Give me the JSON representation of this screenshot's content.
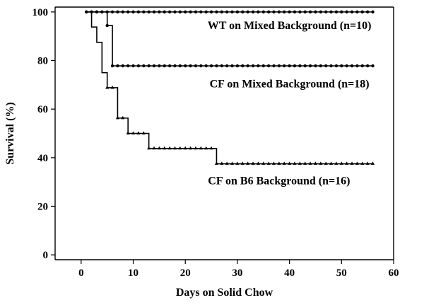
{
  "chart_data": {
    "type": "line",
    "xlabel": "Days on Solid Chow",
    "ylabel": "Survival (%)",
    "xlim": [
      -5,
      60
    ],
    "ylim": [
      -2,
      102
    ],
    "xticks": [
      0,
      10,
      20,
      30,
      40,
      50,
      60
    ],
    "yticks": [
      0,
      20,
      40,
      60,
      80,
      100
    ],
    "grid": false,
    "series": [
      {
        "name": "WT on Mixed Background (n=10)",
        "marker": "circle",
        "steps": [
          [
            1,
            100
          ],
          [
            56,
            100
          ]
        ],
        "markers_x": [
          1,
          2,
          3,
          4,
          5,
          6,
          7,
          8,
          9,
          10,
          11,
          12,
          13,
          14,
          15,
          16,
          17,
          18,
          19,
          20,
          21,
          22,
          23,
          24,
          25,
          26,
          27,
          28,
          29,
          30,
          31,
          32,
          33,
          34,
          35,
          36,
          37,
          38,
          39,
          40,
          41,
          42,
          43,
          44,
          45,
          46,
          47,
          48,
          49,
          50,
          51,
          52,
          53,
          54,
          55,
          56
        ]
      },
      {
        "name": "CF on Mixed Background (n=18)",
        "marker": "circle",
        "steps": [
          [
            1,
            100
          ],
          [
            5,
            94.4
          ],
          [
            6,
            77.8
          ],
          [
            56,
            77.8
          ]
        ],
        "markers_x": [
          1,
          2,
          3,
          4,
          5,
          6,
          7,
          8,
          9,
          10,
          11,
          12,
          13,
          14,
          15,
          16,
          17,
          18,
          19,
          20,
          21,
          22,
          23,
          24,
          25,
          26,
          27,
          28,
          29,
          30,
          31,
          32,
          33,
          34,
          35,
          36,
          37,
          38,
          39,
          40,
          41,
          42,
          43,
          44,
          45,
          46,
          47,
          48,
          49,
          50,
          51,
          52,
          53,
          54,
          55,
          56
        ]
      },
      {
        "name": "CF on B6 Background (n=16)",
        "marker": "triangle",
        "steps": [
          [
            1,
            100
          ],
          [
            2,
            93.8
          ],
          [
            3,
            87.5
          ],
          [
            4,
            75
          ],
          [
            5,
            68.8
          ],
          [
            7,
            56.3
          ],
          [
            9,
            50
          ],
          [
            13,
            43.8
          ],
          [
            26,
            37.5
          ],
          [
            56,
            37.5
          ]
        ],
        "markers_x": [
          5,
          6,
          7,
          8,
          9,
          10,
          11,
          12,
          13,
          14,
          15,
          16,
          17,
          18,
          19,
          20,
          21,
          22,
          23,
          24,
          25,
          26,
          27,
          28,
          29,
          30,
          31,
          32,
          33,
          34,
          35,
          36,
          37,
          38,
          39,
          40,
          41,
          42,
          43,
          44,
          45,
          46,
          47,
          48,
          49,
          50,
          51,
          52,
          53,
          54,
          55,
          56
        ]
      }
    ],
    "annotations": [
      {
        "text": "WT on Mixed Background (n=10)",
        "x": 40,
        "y": 93
      },
      {
        "text": "CF on Mixed Background (n=18)",
        "x": 40,
        "y": 69
      },
      {
        "text": "CF on B6 Background (n=16)",
        "x": 38,
        "y": 29
      }
    ]
  }
}
